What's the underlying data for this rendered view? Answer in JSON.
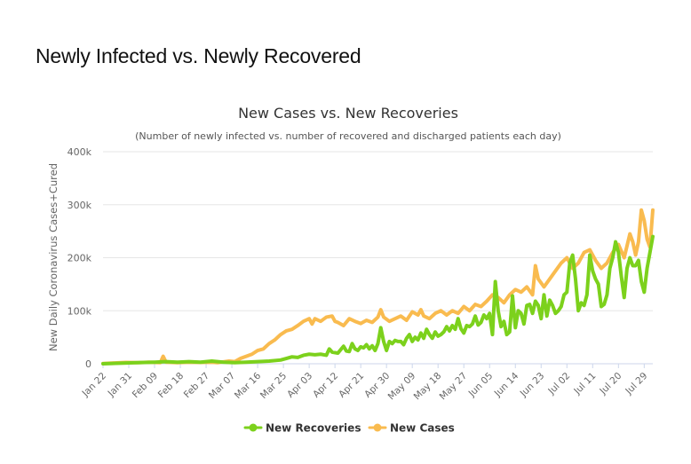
{
  "page": {
    "heading": "Newly Infected vs. Newly Recovered"
  },
  "chart_data": {
    "type": "line",
    "title": "New Cases vs. New Recoveries",
    "subtitle": "(Number of newly infected vs. number of recovered and discharged patients each day)",
    "ylabel": "New Daily Coronavirus Cases+Cured",
    "xlabel": "",
    "ylim": [
      0,
      400000
    ],
    "yticks": [
      {
        "value": 0,
        "label": "0"
      },
      {
        "value": 100000,
        "label": "100k"
      },
      {
        "value": 200000,
        "label": "200k"
      },
      {
        "value": 300000,
        "label": "300k"
      },
      {
        "value": 400000,
        "label": "400k"
      }
    ],
    "x_start": "Jan 22",
    "x_end": "Jul 29",
    "xticks": [
      {
        "day": 0,
        "label": "Jan 22"
      },
      {
        "day": 9,
        "label": "Jan 31"
      },
      {
        "day": 18,
        "label": "Feb 09"
      },
      {
        "day": 27,
        "label": "Feb 18"
      },
      {
        "day": 36,
        "label": "Feb 27"
      },
      {
        "day": 45,
        "label": "Mar 07"
      },
      {
        "day": 54,
        "label": "Mar 16"
      },
      {
        "day": 63,
        "label": "Mar 25"
      },
      {
        "day": 72,
        "label": "Apr 03"
      },
      {
        "day": 81,
        "label": "Apr 12"
      },
      {
        "day": 90,
        "label": "Apr 21"
      },
      {
        "day": 99,
        "label": "Apr 30"
      },
      {
        "day": 108,
        "label": "May 09"
      },
      {
        "day": 117,
        "label": "May 18"
      },
      {
        "day": 126,
        "label": "May 27"
      },
      {
        "day": 135,
        "label": "Jun 05"
      },
      {
        "day": 144,
        "label": "Jun 14"
      },
      {
        "day": 153,
        "label": "Jun 23"
      },
      {
        "day": 162,
        "label": "Jul 02"
      },
      {
        "day": 171,
        "label": "Jul 11"
      },
      {
        "day": 180,
        "label": "Jul 20"
      },
      {
        "day": 189,
        "label": "Jul 29"
      }
    ],
    "grid": true,
    "legend_position": "bottom-center",
    "series": [
      {
        "name": "New Recoveries",
        "color": "#7cd11c",
        "points": [
          [
            0,
            0
          ],
          [
            6,
            1000
          ],
          [
            12,
            2000
          ],
          [
            18,
            3000
          ],
          [
            22,
            4000
          ],
          [
            26,
            3000
          ],
          [
            30,
            4000
          ],
          [
            34,
            3000
          ],
          [
            38,
            5000
          ],
          [
            42,
            3000
          ],
          [
            46,
            2000
          ],
          [
            50,
            3000
          ],
          [
            54,
            4000
          ],
          [
            58,
            5000
          ],
          [
            62,
            7000
          ],
          [
            64,
            10000
          ],
          [
            66,
            13000
          ],
          [
            68,
            12000
          ],
          [
            70,
            16000
          ],
          [
            72,
            18000
          ],
          [
            74,
            17000
          ],
          [
            76,
            18000
          ],
          [
            78,
            16000
          ],
          [
            79,
            28000
          ],
          [
            80,
            22000
          ],
          [
            82,
            20000
          ],
          [
            84,
            33000
          ],
          [
            85,
            24000
          ],
          [
            86,
            23000
          ],
          [
            87,
            38000
          ],
          [
            88,
            28000
          ],
          [
            89,
            25000
          ],
          [
            90,
            32000
          ],
          [
            91,
            30000
          ],
          [
            92,
            36000
          ],
          [
            93,
            28000
          ],
          [
            94,
            34000
          ],
          [
            95,
            25000
          ],
          [
            96,
            38000
          ],
          [
            97,
            68000
          ],
          [
            98,
            42000
          ],
          [
            99,
            25000
          ],
          [
            100,
            42000
          ],
          [
            101,
            38000
          ],
          [
            102,
            44000
          ],
          [
            103,
            42000
          ],
          [
            104,
            42000
          ],
          [
            105,
            36000
          ],
          [
            106,
            48000
          ],
          [
            107,
            55000
          ],
          [
            108,
            42000
          ],
          [
            109,
            50000
          ],
          [
            110,
            45000
          ],
          [
            111,
            58000
          ],
          [
            112,
            48000
          ],
          [
            113,
            65000
          ],
          [
            114,
            55000
          ],
          [
            115,
            48000
          ],
          [
            116,
            60000
          ],
          [
            117,
            52000
          ],
          [
            118,
            55000
          ],
          [
            119,
            60000
          ],
          [
            120,
            70000
          ],
          [
            121,
            62000
          ],
          [
            122,
            72000
          ],
          [
            123,
            65000
          ],
          [
            124,
            85000
          ],
          [
            125,
            66000
          ],
          [
            126,
            58000
          ],
          [
            127,
            72000
          ],
          [
            128,
            70000
          ],
          [
            129,
            75000
          ],
          [
            130,
            90000
          ],
          [
            131,
            73000
          ],
          [
            132,
            78000
          ],
          [
            133,
            92000
          ],
          [
            134,
            85000
          ],
          [
            135,
            95000
          ],
          [
            136,
            55000
          ],
          [
            137,
            155000
          ],
          [
            138,
            100000
          ],
          [
            139,
            70000
          ],
          [
            140,
            80000
          ],
          [
            141,
            55000
          ],
          [
            142,
            60000
          ],
          [
            143,
            128000
          ],
          [
            144,
            68000
          ],
          [
            145,
            100000
          ],
          [
            146,
            95000
          ],
          [
            147,
            75000
          ],
          [
            148,
            110000
          ],
          [
            149,
            112000
          ],
          [
            150,
            95000
          ],
          [
            151,
            118000
          ],
          [
            152,
            110000
          ],
          [
            153,
            85000
          ],
          [
            154,
            130000
          ],
          [
            155,
            90000
          ],
          [
            156,
            120000
          ],
          [
            157,
            110000
          ],
          [
            158,
            95000
          ],
          [
            159,
            100000
          ],
          [
            160,
            108000
          ],
          [
            161,
            130000
          ],
          [
            162,
            135000
          ],
          [
            163,
            190000
          ],
          [
            164,
            205000
          ],
          [
            165,
            160000
          ],
          [
            166,
            100000
          ],
          [
            167,
            115000
          ],
          [
            168,
            110000
          ],
          [
            169,
            130000
          ],
          [
            170,
            205000
          ],
          [
            171,
            175000
          ],
          [
            172,
            160000
          ],
          [
            173,
            150000
          ],
          [
            174,
            108000
          ],
          [
            175,
            112000
          ],
          [
            176,
            130000
          ],
          [
            177,
            180000
          ],
          [
            178,
            200000
          ],
          [
            179,
            230000
          ],
          [
            180,
            210000
          ],
          [
            181,
            165000
          ],
          [
            182,
            125000
          ],
          [
            183,
            180000
          ],
          [
            184,
            200000
          ],
          [
            185,
            185000
          ],
          [
            186,
            185000
          ],
          [
            187,
            195000
          ],
          [
            188,
            155000
          ],
          [
            189,
            135000
          ],
          [
            190,
            180000
          ],
          [
            191,
            210000
          ],
          [
            192,
            240000
          ]
        ]
      },
      {
        "name": "New Cases",
        "color": "#f9bb4f",
        "points": [
          [
            0,
            500
          ],
          [
            4,
            1500
          ],
          [
            8,
            2500
          ],
          [
            12,
            2000
          ],
          [
            16,
            3000
          ],
          [
            18,
            2500
          ],
          [
            20,
            2000
          ],
          [
            21,
            14000
          ],
          [
            22,
            3000
          ],
          [
            26,
            2000
          ],
          [
            30,
            3000
          ],
          [
            34,
            2500
          ],
          [
            38,
            3000
          ],
          [
            40,
            2000
          ],
          [
            44,
            5000
          ],
          [
            46,
            4000
          ],
          [
            48,
            10000
          ],
          [
            50,
            14000
          ],
          [
            52,
            18000
          ],
          [
            54,
            25000
          ],
          [
            56,
            28000
          ],
          [
            58,
            38000
          ],
          [
            60,
            45000
          ],
          [
            62,
            55000
          ],
          [
            64,
            62000
          ],
          [
            66,
            65000
          ],
          [
            68,
            72000
          ],
          [
            70,
            80000
          ],
          [
            72,
            85000
          ],
          [
            73,
            75000
          ],
          [
            74,
            85000
          ],
          [
            76,
            80000
          ],
          [
            78,
            88000
          ],
          [
            80,
            90000
          ],
          [
            81,
            80000
          ],
          [
            82,
            78000
          ],
          [
            84,
            72000
          ],
          [
            86,
            85000
          ],
          [
            88,
            80000
          ],
          [
            90,
            76000
          ],
          [
            92,
            82000
          ],
          [
            94,
            78000
          ],
          [
            96,
            88000
          ],
          [
            97,
            102000
          ],
          [
            98,
            88000
          ],
          [
            100,
            80000
          ],
          [
            102,
            85000
          ],
          [
            104,
            90000
          ],
          [
            106,
            82000
          ],
          [
            108,
            98000
          ],
          [
            110,
            92000
          ],
          [
            111,
            102000
          ],
          [
            112,
            90000
          ],
          [
            114,
            85000
          ],
          [
            116,
            95000
          ],
          [
            118,
            100000
          ],
          [
            120,
            92000
          ],
          [
            122,
            100000
          ],
          [
            124,
            95000
          ],
          [
            126,
            108000
          ],
          [
            128,
            100000
          ],
          [
            130,
            112000
          ],
          [
            132,
            108000
          ],
          [
            134,
            118000
          ],
          [
            136,
            130000
          ],
          [
            138,
            125000
          ],
          [
            140,
            115000
          ],
          [
            142,
            130000
          ],
          [
            144,
            140000
          ],
          [
            146,
            135000
          ],
          [
            148,
            145000
          ],
          [
            150,
            130000
          ],
          [
            151,
            185000
          ],
          [
            152,
            160000
          ],
          [
            154,
            145000
          ],
          [
            156,
            160000
          ],
          [
            158,
            175000
          ],
          [
            160,
            190000
          ],
          [
            162,
            200000
          ],
          [
            164,
            180000
          ],
          [
            166,
            190000
          ],
          [
            168,
            210000
          ],
          [
            170,
            215000
          ],
          [
            172,
            195000
          ],
          [
            174,
            180000
          ],
          [
            176,
            190000
          ],
          [
            178,
            210000
          ],
          [
            180,
            225000
          ],
          [
            182,
            200000
          ],
          [
            184,
            245000
          ],
          [
            185,
            230000
          ],
          [
            186,
            205000
          ],
          [
            187,
            230000
          ],
          [
            188,
            290000
          ],
          [
            189,
            270000
          ],
          [
            190,
            235000
          ],
          [
            191,
            220000
          ],
          [
            192,
            290000
          ]
        ]
      }
    ]
  }
}
